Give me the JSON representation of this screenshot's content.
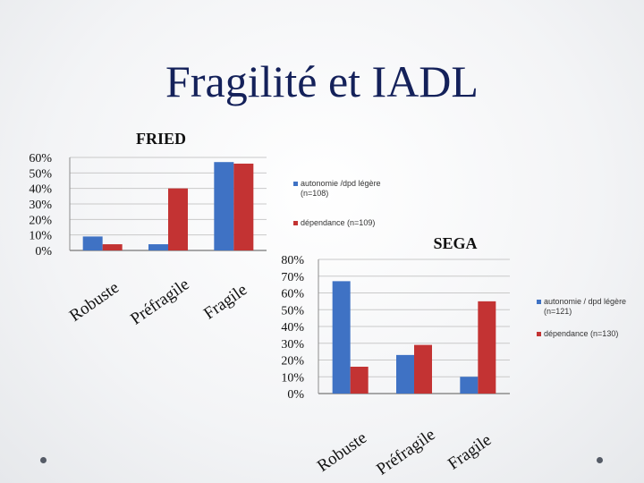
{
  "slide": {
    "title": "Fragilité et IADL"
  },
  "colors": {
    "series1": "#3f72c4",
    "series2": "#c33333",
    "grid": "#c9c9c9",
    "axis": "#8c8c8c"
  },
  "chart_data": [
    {
      "type": "bar",
      "title": "FRIED",
      "categories": [
        "Robuste",
        "Préfragile",
        "Fragile"
      ],
      "ylim": [
        0,
        60
      ],
      "yticks": [
        "0%",
        "10%",
        "20%",
        "30%",
        "40%",
        "50%",
        "60%"
      ],
      "grid": true,
      "legend": "right",
      "series": [
        {
          "name": "autonomie /dpd légère",
          "name_line2": "(n=108)",
          "values": [
            9,
            4,
            57
          ]
        },
        {
          "name": "dépendance (n=109)",
          "values": [
            4,
            40,
            56
          ]
        }
      ]
    },
    {
      "type": "bar",
      "title": "SEGA",
      "categories": [
        "Robuste",
        "Préfragile",
        "Fragile"
      ],
      "ylim": [
        0,
        80
      ],
      "yticks": [
        "0%",
        "10%",
        "20%",
        "30%",
        "40%",
        "50%",
        "60%",
        "70%",
        "80%"
      ],
      "grid": true,
      "legend": "right",
      "series": [
        {
          "name": "autonomie / dpd légère",
          "name_line2": "(n=121)",
          "values": [
            67,
            23,
            10
          ]
        },
        {
          "name": "dépendance (n=130)",
          "values": [
            16,
            29,
            55
          ]
        }
      ]
    }
  ]
}
